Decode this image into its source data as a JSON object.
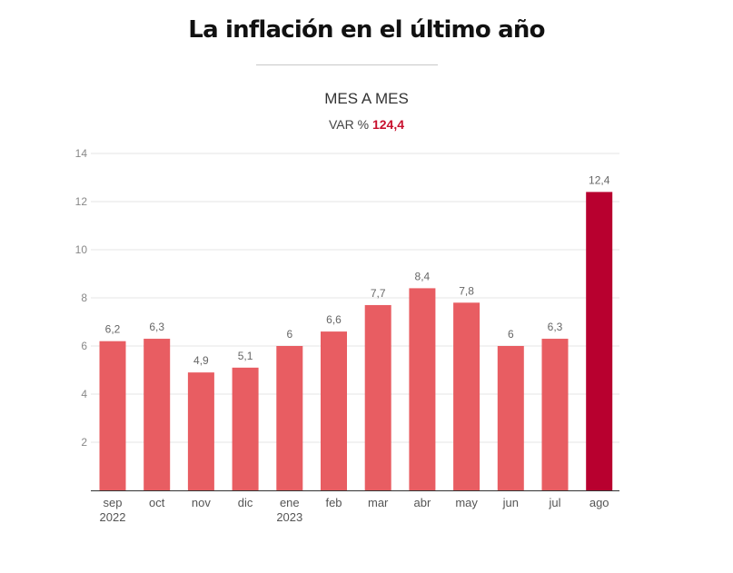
{
  "header": {
    "title": "La inflación en el último año",
    "subtitle": "MES A MES",
    "var_prefix": "VAR %",
    "var_value": "124,4"
  },
  "colors": {
    "bar": "#e85d62",
    "bar_highlight": "#b8002f",
    "var_value": "#c8102e",
    "grid": "#e6e6e6",
    "axis": "#333333"
  },
  "chart_data": {
    "type": "bar",
    "title": "La inflación en el último año",
    "subtitle": "MES A MES",
    "xlabel": "",
    "ylabel": "",
    "categories": [
      "sep",
      "oct",
      "nov",
      "dic",
      "ene",
      "feb",
      "mar",
      "abr",
      "may",
      "jun",
      "jul",
      "ago"
    ],
    "category_sublabels": [
      "2022",
      "",
      "",
      "",
      "2023",
      "",
      "",
      "",
      "",
      "",
      "",
      ""
    ],
    "values": [
      6.2,
      6.3,
      4.9,
      5.1,
      6,
      6.6,
      7.7,
      8.4,
      7.8,
      6,
      6.3,
      12.4
    ],
    "value_labels": [
      "6,2",
      "6,3",
      "4,9",
      "5,1",
      "6",
      "6,6",
      "7,7",
      "8,4",
      "7,8",
      "6",
      "6,3",
      "12,4"
    ],
    "highlight_index": 11,
    "ylim": [
      0,
      14
    ],
    "yticks": [
      2,
      4,
      6,
      8,
      10,
      12,
      14
    ],
    "grid": true,
    "legend": "none"
  }
}
